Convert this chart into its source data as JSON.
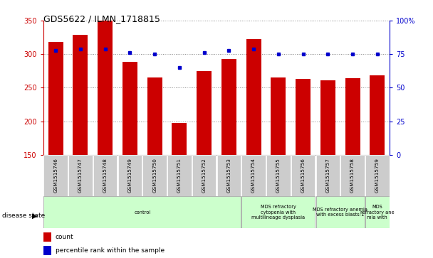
{
  "title": "GDS5622 / ILMN_1718815",
  "samples": [
    "GSM1515746",
    "GSM1515747",
    "GSM1515748",
    "GSM1515749",
    "GSM1515750",
    "GSM1515751",
    "GSM1515752",
    "GSM1515753",
    "GSM1515754",
    "GSM1515755",
    "GSM1515756",
    "GSM1515757",
    "GSM1515758",
    "GSM1515759"
  ],
  "counts": [
    318,
    329,
    350,
    289,
    265,
    197,
    275,
    293,
    322,
    265,
    263,
    261,
    264,
    268
  ],
  "percentile_ranks": [
    78,
    79,
    79,
    76,
    75,
    65,
    76,
    78,
    79,
    75,
    75,
    75,
    75,
    75
  ],
  "y_min": 150,
  "y_max": 350,
  "y_ticks_left": [
    150,
    200,
    250,
    300,
    350
  ],
  "y2_ticks_pct": [
    0,
    25,
    50,
    75,
    100
  ],
  "bar_color": "#cc0000",
  "dot_color": "#0000cc",
  "grid_color": "#888888",
  "label_bg": "#cccccc",
  "disease_group_bg": "#ccffcc",
  "disease_group_border": "#999999",
  "groups": [
    {
      "label": "control",
      "start": 0,
      "end": 8
    },
    {
      "label": "MDS refractory\ncytopenia with\nmultilineage dysplasia",
      "start": 8,
      "end": 11
    },
    {
      "label": "MDS refractory anemia\nwith excess blasts-1",
      "start": 11,
      "end": 13
    },
    {
      "label": "MDS\nrefractory ane\nmia with",
      "start": 13,
      "end": 14
    }
  ]
}
